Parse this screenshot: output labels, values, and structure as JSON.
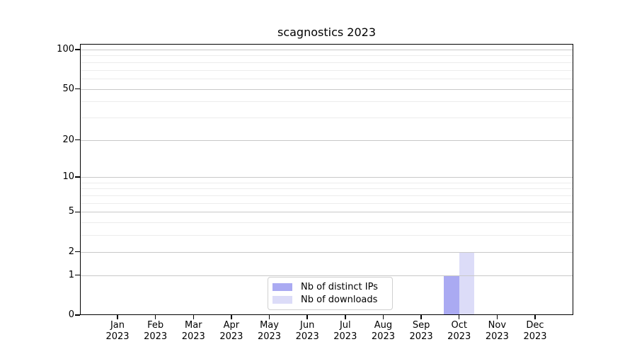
{
  "chart_data": {
    "type": "bar",
    "title": "scagnostics 2023",
    "categories": [
      "Jan 2023",
      "Feb 2023",
      "Mar 2023",
      "Apr 2023",
      "May 2023",
      "Jun 2023",
      "Jul 2023",
      "Aug 2023",
      "Sep 2023",
      "Oct 2023",
      "Nov 2023",
      "Dec 2023"
    ],
    "series": [
      {
        "name": "Nb of distinct IPs",
        "color": "#aaaaf2",
        "values": [
          0,
          0,
          0,
          0,
          0,
          0,
          0,
          0,
          0,
          1,
          0,
          0
        ]
      },
      {
        "name": "Nb of downloads",
        "color": "#dcdcf8",
        "values": [
          0,
          0,
          0,
          0,
          0,
          0,
          0,
          0,
          0,
          2,
          0,
          0
        ]
      }
    ],
    "xlabel": "",
    "ylabel": "",
    "yscale": "log1p",
    "ylim": [
      0,
      110
    ],
    "y_major_ticks": [
      0,
      1,
      2,
      5,
      10,
      20,
      50,
      100
    ],
    "y_minor_gridlines": [
      3,
      4,
      6,
      7,
      8,
      9,
      30,
      40,
      60,
      70,
      80,
      90
    ],
    "grid": "horizontal",
    "legend_position": "lower center",
    "colors": {
      "major_grid": "#c8c8c8",
      "minor_grid": "#ececec",
      "axis": "#000000",
      "background": "#ffffff"
    }
  }
}
